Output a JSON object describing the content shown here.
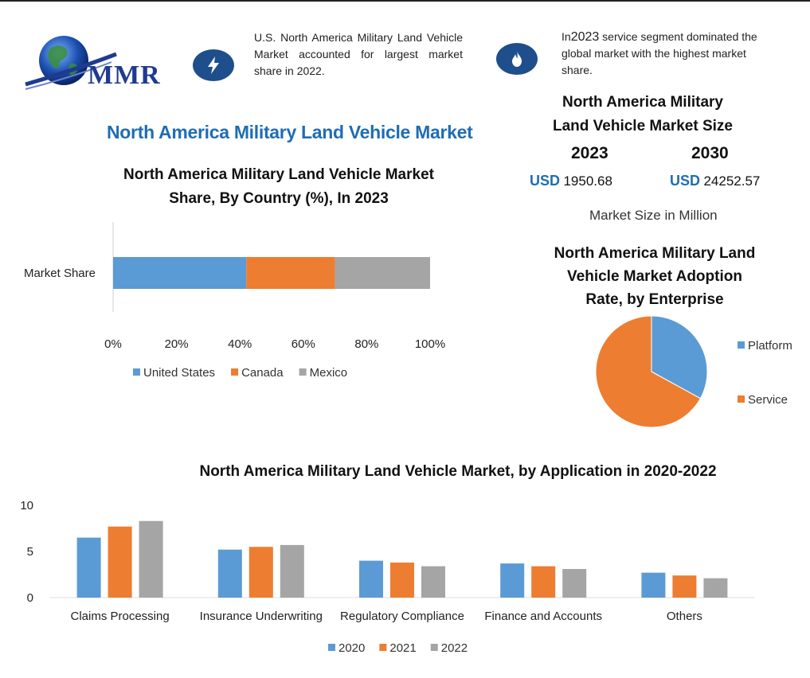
{
  "logo": {
    "text": "MMR"
  },
  "highlights": [
    {
      "text": "U.S. North America Military Land Vehicle Market accounted for largest market share in 2022.",
      "icon": "lightning-icon"
    },
    {
      "year": "2023",
      "text_before": "In",
      "text_after": "service segment dominated the global market with the highest market share.",
      "icon": "flame-icon"
    }
  ],
  "main_title": "North America Military Land Vehicle Market",
  "market_size": {
    "title_line1": "North America Military",
    "title_line2": "Land Vehicle Market Size",
    "year1": "2023",
    "year2": "2030",
    "currency": "USD",
    "value1": "1950.68",
    "value2": "24252.57",
    "unit_note": "Market Size in Million"
  },
  "colors": {
    "blue": "#5b9bd5",
    "orange": "#ed7d31",
    "gray": "#a5a5a5",
    "accent": "#1f6db3"
  },
  "chart_data": [
    {
      "type": "bar",
      "orientation": "horizontal-stacked",
      "title_line1": "North America Military Land Vehicle Market",
      "title_line2": "Share, By Country (%), In 2023",
      "categories": [
        "Market Share"
      ],
      "series": [
        {
          "name": "United States",
          "values": [
            42
          ]
        },
        {
          "name": "Canada",
          "values": [
            28
          ]
        },
        {
          "name": "Mexico",
          "values": [
            30
          ]
        }
      ],
      "xlim": [
        0,
        100
      ],
      "xticks": [
        "0%",
        "20%",
        "40%",
        "60%",
        "80%",
        "100%"
      ],
      "legend": "bottom",
      "grid": false
    },
    {
      "type": "pie",
      "title_line1": "North America Military Land",
      "title_line2": "Vehicle Market Adoption",
      "title_line3": "Rate, by Enterprise",
      "slices": [
        {
          "name": "Platform",
          "value": 33
        },
        {
          "name": "Service",
          "value": 67
        }
      ],
      "legend": "right"
    },
    {
      "type": "bar",
      "title": "North America Military Land Vehicle Market, by Application in 2020-2022",
      "categories": [
        "Claims Processing",
        "Insurance Underwriting",
        "Regulatory Compliance",
        "Finance and Accounts",
        "Others"
      ],
      "series": [
        {
          "name": "2020",
          "values": [
            6.5,
            5.2,
            4.0,
            3.7,
            2.7
          ]
        },
        {
          "name": "2021",
          "values": [
            7.7,
            5.5,
            3.8,
            3.4,
            2.4
          ]
        },
        {
          "name": "2022",
          "values": [
            8.3,
            5.7,
            3.4,
            3.1,
            2.1
          ]
        }
      ],
      "ylim": [
        0,
        10
      ],
      "yticks": [
        "0",
        "5",
        "10"
      ],
      "legend": "bottom",
      "grid": false
    }
  ]
}
